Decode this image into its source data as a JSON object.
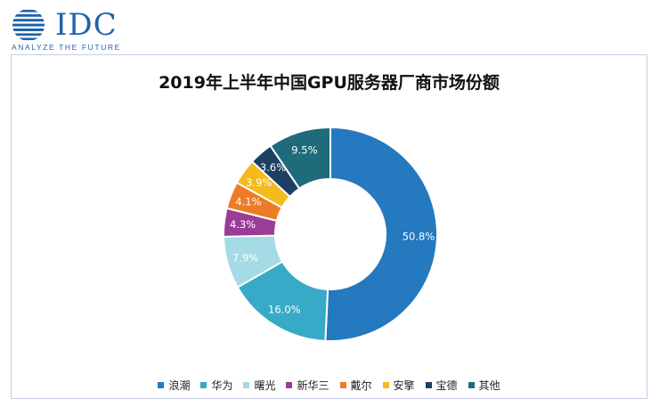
{
  "logo": {
    "name": "IDC",
    "tagline": "ANALYZE THE FUTURE",
    "color": "#1f63a8"
  },
  "chart_data": {
    "type": "pie",
    "variant": "donut",
    "title": "2019年上半年中国GPU服务器厂商市场份额",
    "legend_position": "bottom",
    "slices": [
      {
        "label": "浪潮",
        "value": 50.8,
        "display": "50.8%",
        "color": "#2479bf"
      },
      {
        "label": "华为",
        "value": 16.0,
        "display": "16.0%",
        "color": "#36aac6"
      },
      {
        "label": "曙光",
        "value": 7.9,
        "display": "7.9%",
        "color": "#a4dbe5"
      },
      {
        "label": "新华三",
        "value": 4.3,
        "display": "4.3%",
        "color": "#9a3d97"
      },
      {
        "label": "戴尔",
        "value": 4.1,
        "display": "4.1%",
        "color": "#ee7c26"
      },
      {
        "label": "安擎",
        "value": 3.9,
        "display": "3.9%",
        "color": "#f4bb1d"
      },
      {
        "label": "宝德",
        "value": 3.6,
        "display": "3.6%",
        "color": "#1c3f64"
      },
      {
        "label": "其他",
        "value": 9.5,
        "display": "9.5%",
        "color": "#1e6b7b"
      }
    ]
  }
}
